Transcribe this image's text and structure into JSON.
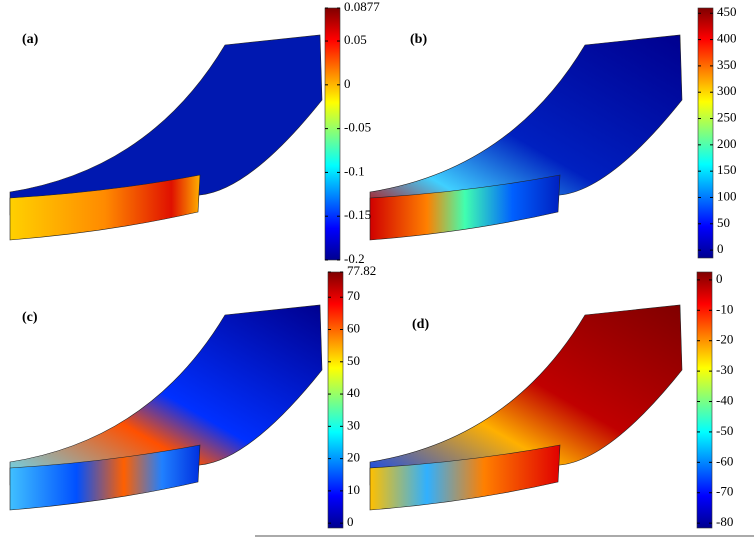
{
  "panels": [
    {
      "label": "(a)",
      "colorbar": {
        "lim": [
          -0.2,
          0.0877
        ],
        "ticks": [
          0.0877,
          0.05,
          0,
          -0.05,
          -0.1,
          -0.15,
          -0.2
        ]
      }
    },
    {
      "label": "(b)",
      "colorbar": {
        "lim": [
          -15,
          460
        ],
        "ticks": [
          450,
          400,
          350,
          300,
          250,
          200,
          150,
          100,
          50,
          0
        ]
      }
    },
    {
      "label": "(c)",
      "colorbar": {
        "lim": [
          -1.5,
          77.82
        ],
        "ticks": [
          77.82,
          70,
          60,
          50,
          40,
          30,
          20,
          10,
          0
        ]
      }
    },
    {
      "label": "(d)",
      "colorbar": {
        "lim": [
          -81.6,
          2.6
        ],
        "ticks": [
          0,
          -10,
          -20,
          -30,
          -40,
          -50,
          -60,
          -70,
          -80
        ]
      }
    }
  ]
}
